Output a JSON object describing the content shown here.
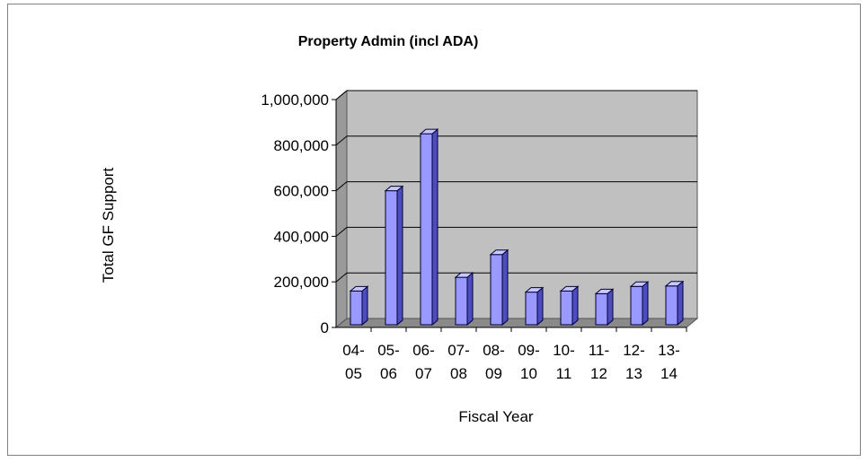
{
  "chart_data": {
    "type": "bar",
    "title": "Property Admin (incl ADA)",
    "xlabel": "Fiscal Year",
    "ylabel": "Total GF Support",
    "categories": [
      [
        "04-",
        "05"
      ],
      [
        "05-",
        "06"
      ],
      [
        "06-",
        "07"
      ],
      [
        "07-",
        "08"
      ],
      [
        "08-",
        "09"
      ],
      [
        "09-",
        "10"
      ],
      [
        "10-",
        "11"
      ],
      [
        "11-",
        "12"
      ],
      [
        "12-",
        "13"
      ],
      [
        "13-",
        "14"
      ]
    ],
    "values": [
      160000,
      600000,
      850000,
      220000,
      320000,
      155000,
      160000,
      148000,
      180000,
      182000
    ],
    "ylim": [
      0,
      1000000
    ],
    "yticks": [
      0,
      200000,
      400000,
      600000,
      800000,
      1000000
    ],
    "ytick_labels": [
      "0",
      "200,000",
      "400,000",
      "600,000",
      "800,000",
      "1,000,000"
    ],
    "grid": true,
    "legend": "none",
    "colors": {
      "bar_front": "#9999ff",
      "bar_side": "#4d4dc0",
      "bar_top": "#c8c8ff",
      "bar_outline": "#000033",
      "wall": "#c0c0c0",
      "floor": "#8a8a8a",
      "side_wall": "#9a9a9a",
      "gridline": "#000000"
    }
  }
}
